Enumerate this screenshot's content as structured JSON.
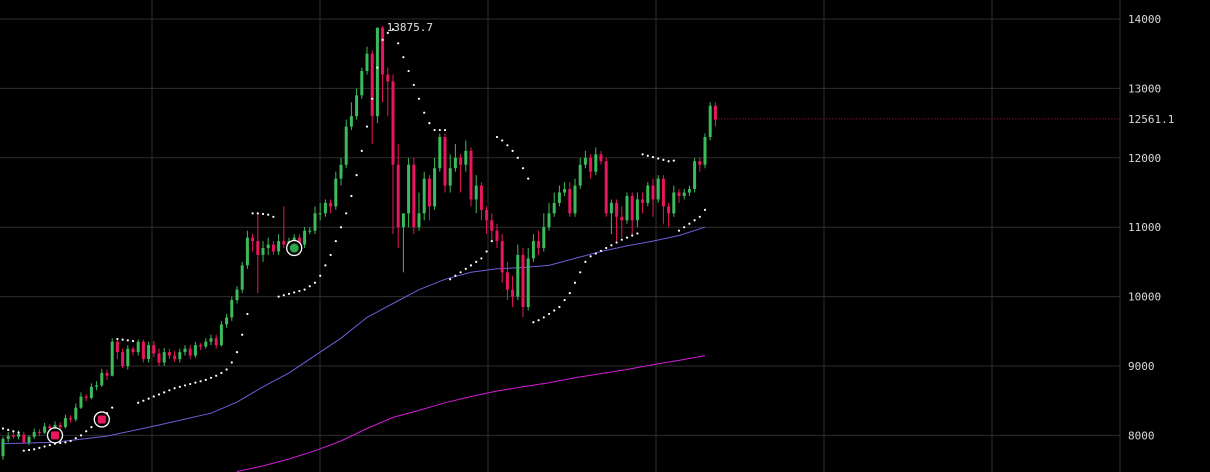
{
  "colors": {
    "background": "#000000",
    "grid": "#2e2e2e",
    "up": "#3dbb5a",
    "down": "#e8175d",
    "sar": "#ffffff",
    "ma_fast": "#6a60d8",
    "ma_slow": "#d21ad6",
    "last_price_line": "#c0143c",
    "buy_signal": "#2aa84a",
    "sell_signal": "#e8175d"
  },
  "chart_data": {
    "type": "candlestick",
    "ylim": [
      7500,
      14200
    ],
    "y_ticks": [
      "8000",
      "9000",
      "10000",
      "11000",
      "12000",
      "13000",
      "14000"
    ],
    "grid": true,
    "high_label": "13875.7",
    "last_price": 12561.1,
    "last_price_label": "12561.1",
    "candles": [
      [
        7700,
        7950,
        7650,
        7980
      ],
      [
        7950,
        7990,
        7900,
        8050
      ],
      [
        8000,
        7980,
        7950,
        8060
      ],
      [
        7980,
        8020,
        7940,
        8070
      ],
      [
        8010,
        7900,
        7880,
        8050
      ],
      [
        7900,
        7980,
        7860,
        8000
      ],
      [
        7980,
        8050,
        7950,
        8100
      ],
      [
        8050,
        8040,
        7990,
        8090
      ],
      [
        8040,
        8130,
        8020,
        8180
      ],
      [
        8130,
        8100,
        8060,
        8160
      ],
      [
        8100,
        8150,
        8080,
        8200
      ],
      [
        8150,
        8120,
        8090,
        8190
      ],
      [
        8120,
        8250,
        8100,
        8300
      ],
      [
        8250,
        8230,
        8180,
        8290
      ],
      [
        8230,
        8400,
        8200,
        8460
      ],
      [
        8400,
        8560,
        8380,
        8620
      ],
      [
        8560,
        8540,
        8490,
        8600
      ],
      [
        8540,
        8700,
        8520,
        8750
      ],
      [
        8700,
        8720,
        8650,
        8780
      ],
      [
        8720,
        8900,
        8700,
        8960
      ],
      [
        8900,
        8860,
        8800,
        8950
      ],
      [
        8860,
        9350,
        8850,
        9400
      ],
      [
        9350,
        9200,
        9100,
        9380
      ],
      [
        9200,
        9000,
        8970,
        9250
      ],
      [
        9000,
        9250,
        8950,
        9300
      ],
      [
        9250,
        9200,
        9150,
        9280
      ],
      [
        9200,
        9350,
        9150,
        9380
      ],
      [
        9350,
        9100,
        9050,
        9380
      ],
      [
        9100,
        9300,
        9050,
        9350
      ],
      [
        9300,
        9180,
        9130,
        9360
      ],
      [
        9180,
        9050,
        9000,
        9250
      ],
      [
        9050,
        9200,
        9000,
        9260
      ],
      [
        9200,
        9150,
        9100,
        9250
      ],
      [
        9150,
        9100,
        9060,
        9220
      ],
      [
        9100,
        9200,
        9050,
        9250
      ],
      [
        9200,
        9250,
        9150,
        9300
      ],
      [
        9250,
        9150,
        9100,
        9300
      ],
      [
        9150,
        9300,
        9120,
        9350
      ],
      [
        9300,
        9280,
        9230,
        9330
      ],
      [
        9280,
        9350,
        9250,
        9400
      ],
      [
        9350,
        9400,
        9300,
        9450
      ],
      [
        9400,
        9300,
        9250,
        9450
      ],
      [
        9300,
        9600,
        9280,
        9650
      ],
      [
        9600,
        9700,
        9550,
        9750
      ],
      [
        9700,
        9950,
        9650,
        10000
      ],
      [
        9950,
        10100,
        9900,
        10150
      ],
      [
        10100,
        10450,
        10050,
        10500
      ],
      [
        10450,
        10850,
        10400,
        10950
      ],
      [
        10850,
        10800,
        10650,
        10900
      ],
      [
        10800,
        10600,
        10050,
        11200
      ],
      [
        10600,
        10700,
        10500,
        10800
      ],
      [
        10700,
        10750,
        10600,
        10850
      ],
      [
        10750,
        10650,
        10600,
        10800
      ],
      [
        10650,
        10800,
        10600,
        10900
      ],
      [
        10800,
        10750,
        10700,
        11300
      ],
      [
        10750,
        10800,
        10700,
        10850
      ],
      [
        10800,
        10850,
        10750,
        10900
      ],
      [
        10850,
        10750,
        10600,
        10900
      ],
      [
        10750,
        10950,
        10700,
        11000
      ],
      [
        10950,
        10950,
        10900,
        11000
      ],
      [
        10950,
        11200,
        10900,
        11300
      ],
      [
        11200,
        11200,
        11100,
        11350
      ],
      [
        11200,
        11350,
        11150,
        11400
      ],
      [
        11350,
        11300,
        11200,
        11400
      ],
      [
        11300,
        11700,
        11250,
        11800
      ],
      [
        11700,
        11900,
        11600,
        12000
      ],
      [
        11900,
        12450,
        11850,
        12550
      ],
      [
        12450,
        12600,
        12400,
        12800
      ],
      [
        12600,
        12900,
        12550,
        13000
      ],
      [
        12900,
        13250,
        12850,
        13300
      ],
      [
        13250,
        13500,
        13200,
        13600
      ],
      [
        13500,
        12600,
        12200,
        13550
      ],
      [
        12600,
        13875,
        12500,
        13875
      ],
      [
        13875,
        13200,
        12800,
        13900
      ],
      [
        13200,
        13100,
        12600,
        13300
      ],
      [
        13100,
        11900,
        10900,
        13200
      ],
      [
        11900,
        11000,
        10700,
        12200
      ],
      [
        11000,
        11200,
        10350,
        11200
      ],
      [
        11200,
        11900,
        11000,
        12000
      ],
      [
        11900,
        11000,
        10900,
        12000
      ],
      [
        11000,
        11200,
        10950,
        11500
      ],
      [
        11200,
        11700,
        11100,
        11800
      ],
      [
        11700,
        11300,
        11100,
        11750
      ],
      [
        11300,
        11850,
        11250,
        12000
      ],
      [
        11850,
        12300,
        11800,
        12350
      ],
      [
        12300,
        11600,
        11500,
        12350
      ],
      [
        11600,
        11850,
        11500,
        12050
      ],
      [
        11850,
        12000,
        11800,
        12200
      ],
      [
        12000,
        11900,
        11500,
        12050
      ],
      [
        11900,
        12100,
        11800,
        12250
      ],
      [
        12100,
        11400,
        11300,
        12150
      ],
      [
        11400,
        11600,
        11200,
        11750
      ],
      [
        11600,
        11250,
        11100,
        11650
      ],
      [
        11250,
        11100,
        10900,
        11300
      ],
      [
        11100,
        10950,
        10800,
        11200
      ],
      [
        10950,
        10800,
        10700,
        11050
      ],
      [
        10800,
        10350,
        10200,
        10900
      ],
      [
        10350,
        10100,
        9950,
        10500
      ],
      [
        10100,
        10000,
        9850,
        10300
      ],
      [
        10000,
        10600,
        9950,
        10750
      ],
      [
        10600,
        9850,
        9700,
        10700
      ],
      [
        9850,
        10550,
        9800,
        10700
      ],
      [
        10550,
        10800,
        10500,
        10900
      ],
      [
        10800,
        10700,
        10600,
        10950
      ],
      [
        10700,
        11000,
        10650,
        11200
      ],
      [
        11000,
        11200,
        10950,
        11350
      ],
      [
        11200,
        11350,
        11150,
        11500
      ],
      [
        11350,
        11500,
        11300,
        11600
      ],
      [
        11500,
        11550,
        11450,
        11650
      ],
      [
        11550,
        11200,
        11150,
        11650
      ],
      [
        11200,
        11600,
        11150,
        11700
      ],
      [
        11600,
        11900,
        11550,
        12000
      ],
      [
        11900,
        12000,
        11850,
        12100
      ],
      [
        12000,
        11800,
        11700,
        12050
      ],
      [
        11800,
        12050,
        11750,
        12150
      ],
      [
        12050,
        11950,
        11900,
        12100
      ],
      [
        11950,
        11200,
        11150,
        12000
      ],
      [
        11200,
        11350,
        10900,
        11400
      ],
      [
        11350,
        11150,
        10800,
        11400
      ],
      [
        11150,
        11100,
        10850,
        11300
      ],
      [
        11100,
        11450,
        11050,
        11500
      ],
      [
        11450,
        11100,
        10900,
        11500
      ],
      [
        11100,
        11400,
        11000,
        11500
      ],
      [
        11400,
        11350,
        11200,
        11500
      ],
      [
        11350,
        11600,
        11300,
        11650
      ],
      [
        11600,
        11400,
        11150,
        11700
      ],
      [
        11400,
        11700,
        11350,
        11750
      ],
      [
        11700,
        11300,
        11050,
        11750
      ],
      [
        11300,
        11200,
        11000,
        11350
      ],
      [
        11200,
        11500,
        11150,
        11600
      ],
      [
        11500,
        11450,
        11350,
        11550
      ],
      [
        11450,
        11500,
        11400,
        11550
      ],
      [
        11500,
        11550,
        11450,
        11600
      ],
      [
        11550,
        11950,
        11500,
        12000
      ],
      [
        11950,
        11900,
        11800,
        12000
      ],
      [
        11900,
        12300,
        11850,
        12350
      ],
      [
        12300,
        12750,
        12250,
        12800
      ],
      [
        12750,
        12550,
        12450,
        12800
      ]
    ],
    "sar": [
      [
        0,
        8100
      ],
      [
        1,
        8080
      ],
      [
        2,
        8060
      ],
      [
        3,
        8040
      ],
      [
        4,
        7780
      ],
      [
        5,
        7790
      ],
      [
        6,
        7800
      ],
      [
        7,
        7820
      ],
      [
        8,
        7840
      ],
      [
        9,
        7860
      ],
      [
        10,
        7880
      ],
      [
        11,
        7890
      ],
      [
        12,
        7900
      ],
      [
        13,
        7920
      ],
      [
        14,
        7960
      ],
      [
        15,
        8000
      ],
      [
        16,
        8060
      ],
      [
        17,
        8120
      ],
      [
        18,
        8180
      ],
      [
        19,
        8240
      ],
      [
        20,
        8320
      ],
      [
        21,
        8400
      ],
      [
        22,
        9390
      ],
      [
        23,
        9380
      ],
      [
        24,
        9370
      ],
      [
        25,
        9360
      ],
      [
        26,
        8470
      ],
      [
        27,
        8500
      ],
      [
        28,
        8530
      ],
      [
        29,
        8560
      ],
      [
        30,
        8590
      ],
      [
        31,
        8620
      ],
      [
        32,
        8650
      ],
      [
        33,
        8680
      ],
      [
        34,
        8700
      ],
      [
        35,
        8720
      ],
      [
        36,
        8740
      ],
      [
        37,
        8760
      ],
      [
        38,
        8780
      ],
      [
        39,
        8800
      ],
      [
        40,
        8830
      ],
      [
        41,
        8860
      ],
      [
        42,
        8900
      ],
      [
        43,
        8950
      ],
      [
        44,
        9050
      ],
      [
        45,
        9200
      ],
      [
        46,
        9450
      ],
      [
        47,
        9750
      ],
      [
        48,
        11200
      ],
      [
        49,
        11200
      ],
      [
        50,
        11190
      ],
      [
        51,
        11180
      ],
      [
        52,
        11150
      ],
      [
        53,
        10000
      ],
      [
        54,
        10020
      ],
      [
        55,
        10040
      ],
      [
        56,
        10060
      ],
      [
        57,
        10080
      ],
      [
        58,
        10100
      ],
      [
        59,
        10150
      ],
      [
        60,
        10200
      ],
      [
        61,
        10300
      ],
      [
        62,
        10450
      ],
      [
        63,
        10600
      ],
      [
        64,
        10800
      ],
      [
        65,
        11000
      ],
      [
        66,
        11200
      ],
      [
        67,
        11450
      ],
      [
        68,
        11750
      ],
      [
        69,
        12100
      ],
      [
        70,
        12450
      ],
      [
        71,
        12850
      ],
      [
        72,
        13300
      ],
      [
        73,
        13700
      ],
      [
        74,
        13800
      ],
      [
        75,
        13850
      ],
      [
        76,
        13650
      ],
      [
        77,
        13450
      ],
      [
        78,
        13250
      ],
      [
        79,
        13050
      ],
      [
        80,
        12850
      ],
      [
        81,
        12650
      ],
      [
        82,
        12500
      ],
      [
        83,
        12400
      ],
      [
        84,
        12400
      ],
      [
        85,
        12400
      ],
      [
        86,
        10250
      ],
      [
        87,
        10300
      ],
      [
        88,
        10350
      ],
      [
        89,
        10400
      ],
      [
        90,
        10450
      ],
      [
        91,
        10500
      ],
      [
        92,
        10550
      ],
      [
        93,
        10650
      ],
      [
        94,
        10800
      ],
      [
        95,
        12300
      ],
      [
        96,
        12250
      ],
      [
        97,
        12180
      ],
      [
        98,
        12100
      ],
      [
        99,
        12000
      ],
      [
        100,
        11850
      ],
      [
        101,
        11700
      ],
      [
        102,
        9630
      ],
      [
        103,
        9660
      ],
      [
        104,
        9700
      ],
      [
        105,
        9750
      ],
      [
        106,
        9800
      ],
      [
        107,
        9850
      ],
      [
        108,
        9950
      ],
      [
        109,
        10050
      ],
      [
        110,
        10200
      ],
      [
        111,
        10350
      ],
      [
        112,
        10500
      ],
      [
        113,
        10580
      ],
      [
        114,
        10620
      ],
      [
        115,
        10660
      ],
      [
        116,
        10700
      ],
      [
        117,
        10740
      ],
      [
        118,
        10780
      ],
      [
        119,
        10820
      ],
      [
        120,
        10850
      ],
      [
        121,
        10880
      ],
      [
        122,
        10910
      ],
      [
        123,
        12050
      ],
      [
        124,
        12030
      ],
      [
        125,
        12010
      ],
      [
        126,
        11990
      ],
      [
        127,
        11970
      ],
      [
        128,
        11950
      ],
      [
        129,
        11960
      ],
      [
        130,
        10950
      ],
      [
        131,
        11000
      ],
      [
        132,
        11050
      ],
      [
        133,
        11100
      ],
      [
        134,
        11150
      ],
      [
        135,
        11250
      ]
    ],
    "ma_fast": [
      [
        0,
        7880
      ],
      [
        10,
        7900
      ],
      [
        20,
        7990
      ],
      [
        30,
        8150
      ],
      [
        40,
        8320
      ],
      [
        45,
        8480
      ],
      [
        50,
        8700
      ],
      [
        55,
        8900
      ],
      [
        60,
        9150
      ],
      [
        65,
        9400
      ],
      [
        70,
        9700
      ],
      [
        75,
        9900
      ],
      [
        80,
        10100
      ],
      [
        85,
        10250
      ],
      [
        90,
        10350
      ],
      [
        95,
        10400
      ],
      [
        100,
        10420
      ],
      [
        105,
        10450
      ],
      [
        110,
        10550
      ],
      [
        115,
        10650
      ],
      [
        120,
        10730
      ],
      [
        125,
        10800
      ],
      [
        130,
        10880
      ],
      [
        135,
        11000
      ]
    ],
    "ma_slow": [
      [
        45,
        7480
      ],
      [
        50,
        7560
      ],
      [
        55,
        7660
      ],
      [
        60,
        7780
      ],
      [
        65,
        7920
      ],
      [
        70,
        8100
      ],
      [
        75,
        8260
      ],
      [
        80,
        8360
      ],
      [
        85,
        8470
      ],
      [
        90,
        8560
      ],
      [
        95,
        8640
      ],
      [
        100,
        8700
      ],
      [
        105,
        8760
      ],
      [
        110,
        8830
      ],
      [
        115,
        8890
      ],
      [
        120,
        8950
      ],
      [
        125,
        9020
      ],
      [
        130,
        9080
      ],
      [
        135,
        9150
      ]
    ],
    "signals": [
      {
        "index": 10,
        "value": 8000,
        "kind": "sell"
      },
      {
        "index": 19,
        "value": 8230,
        "kind": "sell"
      },
      {
        "index": 56,
        "value": 10700,
        "kind": "buy"
      }
    ]
  }
}
